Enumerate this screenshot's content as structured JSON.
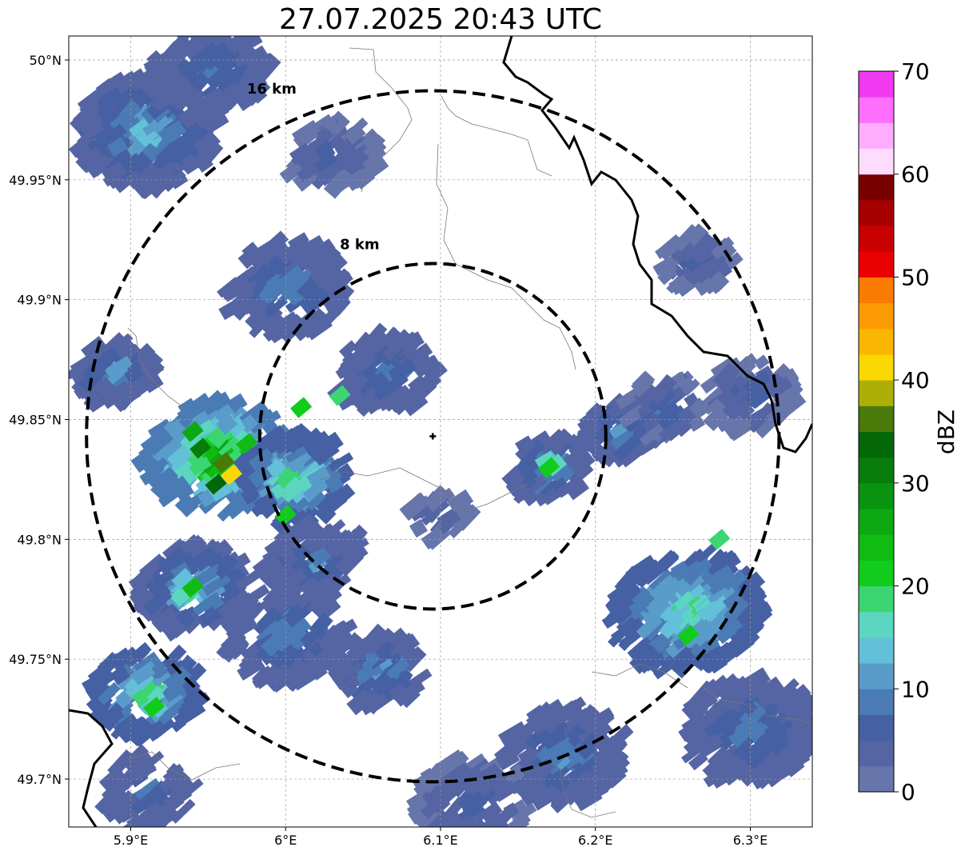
{
  "title": "27.07.2025 20:43 UTC",
  "map": {
    "lon_range": [
      5.86,
      6.34
    ],
    "lat_range": [
      49.68,
      50.01
    ],
    "x_ticks": [
      {
        "value": 5.9,
        "label": "5.9°E"
      },
      {
        "value": 6.0,
        "label": "6°E"
      },
      {
        "value": 6.1,
        "label": "6.1°E"
      },
      {
        "value": 6.2,
        "label": "6.2°E"
      },
      {
        "value": 6.3,
        "label": "6.3°E"
      }
    ],
    "y_ticks": [
      {
        "value": 50.0,
        "label": "50°N"
      },
      {
        "value": 49.95,
        "label": "49.95°N"
      },
      {
        "value": 49.9,
        "label": "49.9°N"
      },
      {
        "value": 49.85,
        "label": "49.85°N"
      },
      {
        "value": 49.8,
        "label": "49.8°N"
      },
      {
        "value": 49.75,
        "label": "49.75°N"
      },
      {
        "value": 49.7,
        "label": "49.7°N"
      }
    ],
    "grid": true,
    "radar_site": {
      "lon": 6.095,
      "lat": 49.843
    },
    "range_rings": [
      {
        "label": "8 km",
        "km": 8,
        "label_lon": 6.035,
        "label_lat": 49.921
      },
      {
        "label": "16 km",
        "km": 16,
        "label_lon": 5.975,
        "label_lat": 49.986
      }
    ]
  },
  "colorbar": {
    "label": "dBZ",
    "min": 0,
    "max": 70,
    "ticks": [
      {
        "value": 0,
        "label": "0"
      },
      {
        "value": 10,
        "label": "10"
      },
      {
        "value": 20,
        "label": "20"
      },
      {
        "value": 30,
        "label": "30"
      },
      {
        "value": 40,
        "label": "40"
      },
      {
        "value": 50,
        "label": "50"
      },
      {
        "value": 60,
        "label": "60"
      },
      {
        "value": 70,
        "label": "70"
      }
    ],
    "colors": [
      "#6675aa",
      "#5565a3",
      "#4660a4",
      "#4b7bb4",
      "#5a9cc9",
      "#62c0d8",
      "#5dd6c1",
      "#3bd671",
      "#12cc1c",
      "#10bb12",
      "#0da812",
      "#0a9310",
      "#087d0c",
      "#056808",
      "#4a7a0a",
      "#adaf07",
      "#fbd704",
      "#fbb603",
      "#fb9a03",
      "#fb7c02",
      "#ea0000",
      "#c90000",
      "#a70000",
      "#7a0000",
      "#fedcfe",
      "#feadfe",
      "#fe6ffe",
      "#f039f0"
    ]
  },
  "chart_data": {
    "type": "heatmap",
    "title": "27.07.2025 20:43 UTC",
    "value_label": "dBZ",
    "value_range": [
      0,
      70
    ],
    "cells": [
      {
        "lon": 5.965,
        "lat": 49.827,
        "dbz": 40
      },
      {
        "lon": 5.96,
        "lat": 49.832,
        "dbz": 36
      },
      {
        "lon": 5.955,
        "lat": 49.823,
        "dbz": 33
      },
      {
        "lon": 5.945,
        "lat": 49.838,
        "dbz": 30
      },
      {
        "lon": 5.94,
        "lat": 49.845,
        "dbz": 26
      },
      {
        "lon": 5.975,
        "lat": 49.84,
        "dbz": 24
      },
      {
        "lon": 6.01,
        "lat": 49.855,
        "dbz": 20
      },
      {
        "lon": 6.035,
        "lat": 49.86,
        "dbz": 18
      },
      {
        "lon": 6.0,
        "lat": 49.81,
        "dbz": 22
      },
      {
        "lon": 5.94,
        "lat": 49.78,
        "dbz": 24
      },
      {
        "lon": 5.915,
        "lat": 49.73,
        "dbz": 22
      },
      {
        "lon": 6.17,
        "lat": 49.83,
        "dbz": 20
      },
      {
        "lon": 6.26,
        "lat": 49.76,
        "dbz": 22
      },
      {
        "lon": 6.28,
        "lat": 49.8,
        "dbz": 18
      }
    ]
  }
}
